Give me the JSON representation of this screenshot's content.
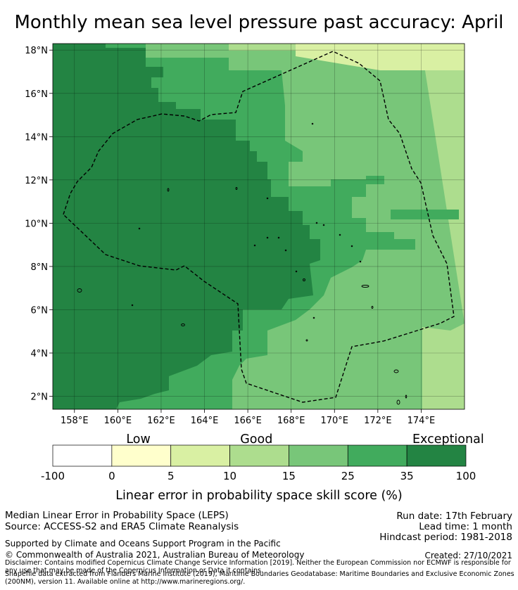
{
  "title": "Monthly mean sea level pressure past accuracy: April",
  "map": {
    "lat_ticks": [
      "2°N",
      "4°N",
      "6°N",
      "8°N",
      "10°N",
      "12°N",
      "14°N",
      "16°N",
      "18°N"
    ],
    "lon_ticks": [
      "158°E",
      "160°E",
      "162°E",
      "164°E",
      "166°E",
      "168°E",
      "170°E",
      "172°E",
      "174°E"
    ],
    "lat_range": [
      1.4,
      18.3
    ],
    "lon_range": [
      157.0,
      176.0
    ]
  },
  "legend": {
    "categories": [
      "Low",
      "Good",
      "Exceptional"
    ],
    "tick_labels": [
      "-100",
      "0",
      "5",
      "10",
      "15",
      "25",
      "35",
      "100"
    ],
    "colors": [
      "#ffffff",
      "#ffffcc",
      "#d9f0a3",
      "#addd8e",
      "#78c679",
      "#41ab5d",
      "#238443"
    ],
    "axis_label": "Linear error in probability space skill score (%)"
  },
  "footer": {
    "method": "Median Linear Error in Probability Space (LEPS)",
    "source": "Source: ACCESS-S2 and ERA5 Climate Reanalysis",
    "run_date": "Run date: 17th February",
    "lead_time": "Lead time: 1 month",
    "hindcast": "Hindcast period: 1981-2018",
    "support": "Supported by Climate and Oceans Support Program in the Pacific",
    "copyright": "© Commonwealth of Australia 2021, Australian Bureau of Meteorology",
    "created": "Created: 27/10/2021",
    "disclaimer1": "Disclaimer: Contains modified Copernicus Climate Change Service Information [2019]. Neither the European Commission nor ECMWF is responsible for any use that may be made of the Copernicus Information or Data it contains.",
    "disclaimer2": "Shapefile data extracted from Flanders Marine Institute (2019), Maritime Boundaries Geodatabase: Maritime Boundaries and Exclusive Economic Zones (200NM), version 11. Available online at http://www.marineregions.org/."
  }
}
